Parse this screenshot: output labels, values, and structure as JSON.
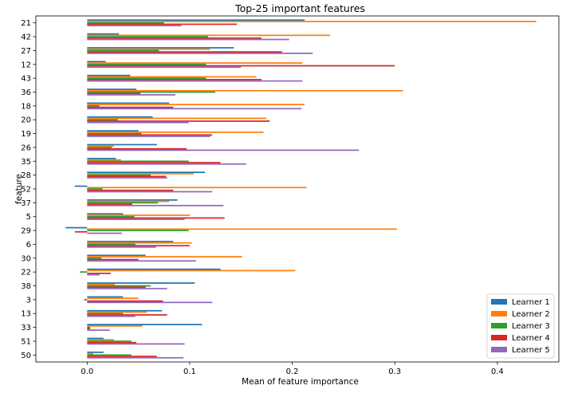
{
  "chart_data": {
    "type": "bar",
    "orientation": "horizontal",
    "title": "Top-25 important features",
    "xlabel": "Mean of feature importance",
    "ylabel": "feature",
    "xlim": [
      -0.05,
      0.46
    ],
    "xticks": [
      0.0,
      0.1,
      0.2,
      0.3,
      0.4
    ],
    "xtick_labels": [
      "0.0",
      "0.1",
      "0.2",
      "0.3",
      "0.4"
    ],
    "grid": false,
    "legend_position": "lower right",
    "categories": [
      "21",
      "42",
      "27",
      "12",
      "43",
      "36",
      "18",
      "20",
      "19",
      "26",
      "35",
      "28",
      "52",
      "37",
      "5",
      "29",
      "6",
      "30",
      "22",
      "38",
      "3",
      "13",
      "33",
      "51",
      "50"
    ],
    "series": [
      {
        "name": "Learner 1",
        "color": "#1f77b4",
        "values": [
          0.212,
          0.031,
          0.143,
          0.018,
          0.042,
          0.048,
          0.08,
          0.064,
          0.05,
          0.068,
          0.028,
          0.115,
          -0.012,
          0.088,
          0.035,
          -0.021,
          0.084,
          0.057,
          0.13,
          0.105,
          0.035,
          0.073,
          0.112,
          0.016,
          0.016
        ]
      },
      {
        "name": "Learner 2",
        "color": "#ff7f0e",
        "values": [
          0.438,
          0.237,
          0.12,
          0.21,
          0.165,
          0.308,
          0.212,
          0.175,
          0.172,
          0.026,
          0.033,
          0.104,
          0.214,
          0.08,
          0.1,
          0.302,
          0.102,
          0.151,
          0.203,
          0.027,
          0.05,
          0.058,
          0.054,
          0.026,
          0.006
        ]
      },
      {
        "name": "Learner 3",
        "color": "#2ca02c",
        "values": [
          0.075,
          0.118,
          0.07,
          0.116,
          0.116,
          0.125,
          0.012,
          0.03,
          0.053,
          0.024,
          0.099,
          0.062,
          0.015,
          0.069,
          0.046,
          0.099,
          0.047,
          0.014,
          -0.007,
          0.062,
          -0.003,
          0.035,
          0.003,
          0.043,
          0.043
        ]
      },
      {
        "name": "Learner 4",
        "color": "#d62728",
        "values": [
          0.146,
          0.17,
          0.19,
          0.3,
          0.17,
          0.052,
          0.084,
          0.178,
          0.122,
          0.097,
          0.13,
          0.077,
          0.084,
          0.044,
          0.134,
          -0.012,
          0.1,
          0.05,
          0.023,
          0.057,
          0.074,
          0.078,
          0.003,
          0.048,
          0.068
        ]
      },
      {
        "name": "Learner 5",
        "color": "#9467bd",
        "values": [
          0.092,
          0.197,
          0.22,
          0.15,
          0.21,
          0.086,
          0.209,
          0.099,
          0.12,
          0.265,
          0.155,
          0.078,
          0.122,
          0.133,
          0.095,
          0.034,
          0.067,
          0.106,
          0.012,
          0.078,
          0.122,
          0.047,
          0.022,
          0.095,
          0.094
        ]
      }
    ]
  }
}
